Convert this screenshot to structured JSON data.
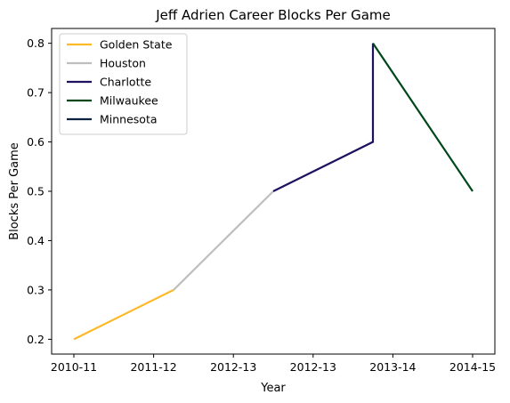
{
  "chart_data": {
    "type": "line",
    "title": "Jeff Adrien Career Blocks Per Game",
    "xlabel": "Year",
    "ylabel": "Blocks Per Game",
    "x_tick_labels": [
      "2010-11",
      "2011-12",
      "2012-13",
      "2012-13",
      "2013-14",
      "2014-15"
    ],
    "y_ticks": [
      0.2,
      0.3,
      0.4,
      0.5,
      0.6,
      0.7,
      0.8
    ],
    "ylim": [
      0.17,
      0.83
    ],
    "grid": false,
    "legend_position": "top-left",
    "series": [
      {
        "name": "Golden State",
        "color": "#FDB927",
        "points": [
          {
            "x": 0,
            "y": 0.2
          },
          {
            "x": 1,
            "y": 0.3
          }
        ]
      },
      {
        "name": "Houston",
        "color": "#BEBEBE",
        "points": [
          {
            "x": 1,
            "y": 0.3
          },
          {
            "x": 2,
            "y": 0.5
          }
        ]
      },
      {
        "name": "Charlotte",
        "color": "#1D1160",
        "points": [
          {
            "x": 2,
            "y": 0.5
          },
          {
            "x": 3,
            "y": 0.6
          },
          {
            "x": 3,
            "y": 0.8
          }
        ]
      },
      {
        "name": "Milwaukee",
        "color": "#00471B",
        "points": [
          {
            "x": 3,
            "y": 0.8
          },
          {
            "x": 4,
            "y": 0.5
          }
        ]
      },
      {
        "name": "Minnesota",
        "color": "#0C2340",
        "points": []
      }
    ]
  }
}
